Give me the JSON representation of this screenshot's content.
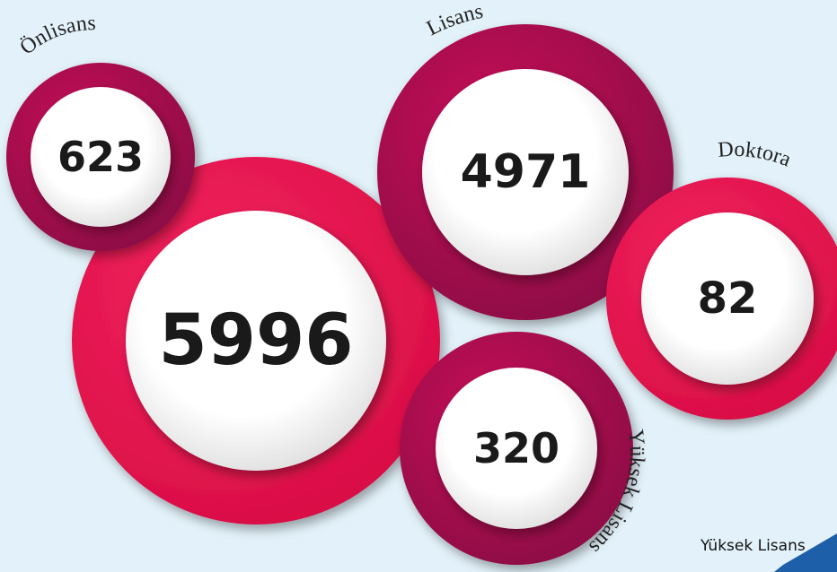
{
  "bubbles": [
    {
      "value": 5996
    },
    {
      "label": "Önlisans",
      "value": 623
    },
    {
      "label": "Lisans",
      "value": 4971
    },
    {
      "label": "Doktora",
      "value": 82
    },
    {
      "label": "Yüksek Lisans",
      "value": 320
    }
  ],
  "footer": {
    "label": "Yüksek Lisans"
  }
}
